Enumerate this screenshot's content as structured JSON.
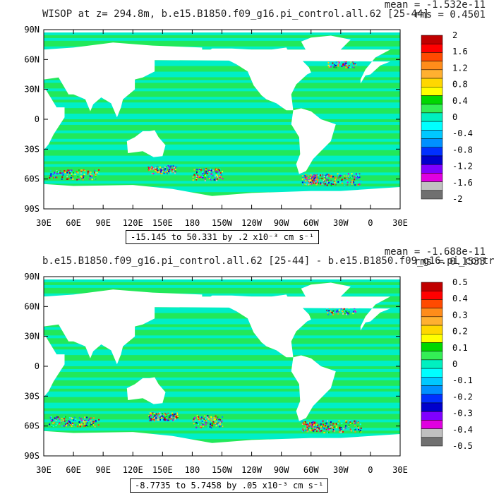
{
  "panels": [
    {
      "title": "WISOP at z= 294.8m, b.e15.B1850.f09_g16.pi_control.all.62 [25-44]",
      "mean": "mean = -1.532e-11",
      "rms": "rms = 0.4501",
      "info": "-15.145 to 50.331 by .2 x10⁻³ cm s⁻¹",
      "colorbar": {
        "labels": [
          "2",
          "1.6",
          "1.2",
          "0.8",
          "0.4",
          "0",
          "-0.4",
          "-0.8",
          "-1.2",
          "-1.6",
          "-2"
        ]
      }
    },
    {
      "title": "b.e15.B1850.f09_g16.pi_control.all.62 [25-44] - b.e15.B1850.f09_g16.pi_control",
      "mean": "mean = -1.688e-11",
      "rms": "rms = 0.1533",
      "info": "-8.7735 to 5.7458 by .05 x10⁻³ cm s⁻¹",
      "colorbar": {
        "labels": [
          "0.5",
          "0.4",
          "0.3",
          "0.2",
          "0.1",
          "0",
          "-0.1",
          "-0.2",
          "-0.3",
          "-0.4",
          "-0.5"
        ]
      }
    }
  ],
  "axes": {
    "lat_labels": [
      "90N",
      "60N",
      "30N",
      "0",
      "30S",
      "60S",
      "90S"
    ],
    "lon_labels": [
      "30E",
      "60E",
      "90E",
      "120E",
      "150E",
      "180",
      "150W",
      "120W",
      "90W",
      "60W",
      "30W",
      "0",
      "30E"
    ]
  },
  "colors": {
    "scale": [
      "#c00000",
      "#ff0000",
      "#ff4a00",
      "#ff8c1a",
      "#ffb030",
      "#ffd700",
      "#ffff00",
      "#00d700",
      "#33ee55",
      "#00f0c0",
      "#00ffff",
      "#00c8ff",
      "#0090ff",
      "#0030ff",
      "#0000cc",
      "#8000ff",
      "#e000e0",
      "#c0c0c0",
      "#707070"
    ],
    "ocean_main": "#22e85a",
    "ocean_alt": "#00eec8"
  }
}
